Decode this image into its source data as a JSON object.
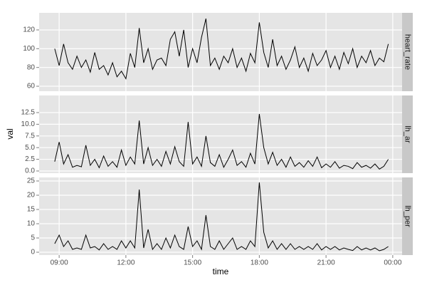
{
  "chart_data": {
    "type": "line",
    "xlabel": "time",
    "ylabel": "val",
    "x": [
      8.8,
      9,
      9.2,
      9.4,
      9.6,
      9.8,
      10,
      10.2,
      10.4,
      10.6,
      10.8,
      11,
      11.2,
      11.4,
      11.6,
      11.8,
      12,
      12.2,
      12.4,
      12.6,
      12.8,
      13,
      13.2,
      13.4,
      13.6,
      13.8,
      14,
      14.2,
      14.4,
      14.6,
      14.8,
      15,
      15.2,
      15.4,
      15.6,
      15.8,
      16,
      16.2,
      16.4,
      16.6,
      16.8,
      17,
      17.2,
      17.4,
      17.6,
      17.8,
      18,
      18.2,
      18.4,
      18.6,
      18.8,
      19,
      19.2,
      19.4,
      19.6,
      19.8,
      20,
      20.2,
      20.4,
      20.6,
      20.8,
      21,
      21.2,
      21.4,
      21.6,
      21.8,
      22,
      22.2,
      22.4,
      22.6,
      22.8,
      23,
      23.2,
      23.4,
      23.6,
      23.8
    ],
    "xlim": [
      8.1,
      24.42
    ],
    "xticks": [
      {
        "value": 9,
        "label": "09:00"
      },
      {
        "value": 12,
        "label": "12:00"
      },
      {
        "value": 15,
        "label": "15:00"
      },
      {
        "value": 18,
        "label": "18:00"
      },
      {
        "value": 21,
        "label": "21:00"
      },
      {
        "value": 24,
        "label": "00:00"
      }
    ],
    "grid": true,
    "series": [
      {
        "name": "heart_rate",
        "color": "#000000",
        "ylim": [
          54.7,
          138.2
        ],
        "yticks": [
          60,
          80,
          100,
          120
        ],
        "values": [
          100,
          82,
          105,
          85,
          78,
          92,
          80,
          88,
          75,
          96,
          78,
          82,
          72,
          85,
          70,
          76,
          68,
          95,
          80,
          122,
          85,
          100,
          78,
          88,
          90,
          82,
          110,
          118,
          92,
          120,
          80,
          100,
          85,
          112,
          132,
          82,
          90,
          78,
          92,
          85,
          100,
          80,
          90,
          76,
          95,
          85,
          128,
          96,
          80,
          110,
          82,
          92,
          78,
          88,
          102,
          80,
          90,
          76,
          95,
          82,
          88,
          98,
          80,
          92,
          78,
          96,
          84,
          100,
          80,
          92,
          85,
          98,
          82,
          90,
          86,
          105
        ]
      },
      {
        "name": "lh_ar",
        "color": "#000000",
        "ylim": [
          -0.46,
          16.16
        ],
        "yticks": [
          {
            "value": 0,
            "label": "0.0"
          },
          2.5,
          {
            "value": 5,
            "label": "5.0"
          },
          7.5,
          {
            "value": 10,
            "label": "10.0"
          },
          12.5
        ],
        "values": [
          2.0,
          6.2,
          1.5,
          3.5,
          0.8,
          1.2,
          0.9,
          5.5,
          1.2,
          2.5,
          0.7,
          3.2,
          1.0,
          2.0,
          0.8,
          4.5,
          1.2,
          3.0,
          1.5,
          10.8,
          1.5,
          5.0,
          1.2,
          2.5,
          1.0,
          4.2,
          1.5,
          5.2,
          2.0,
          1.0,
          10.5,
          1.5,
          3.0,
          1.0,
          7.5,
          1.8,
          1.0,
          3.5,
          0.8,
          2.5,
          4.5,
          1.2,
          2.0,
          0.8,
          3.8,
          1.5,
          12.2,
          5.0,
          1.5,
          4.0,
          1.2,
          2.5,
          0.8,
          3.0,
          1.0,
          1.8,
          0.8,
          2.2,
          1.0,
          3.0,
          0.7,
          1.5,
          0.8,
          2.0,
          0.6,
          1.2,
          1.0,
          0.5,
          1.8,
          0.8,
          1.2,
          0.6,
          1.5,
          0.4,
          1.0,
          2.5
        ]
      },
      {
        "name": "lh_per",
        "color": "#000000",
        "ylim": [
          -1.0,
          26.25
        ],
        "yticks": [
          0,
          5,
          10,
          15,
          20,
          25
        ],
        "values": [
          3,
          6,
          2,
          4,
          1,
          1.5,
          1,
          6,
          1.5,
          2,
          0.8,
          3,
          1,
          2,
          1,
          4,
          1.5,
          4,
          1.5,
          22,
          1.5,
          8,
          1,
          3,
          1,
          5,
          1.5,
          6,
          2,
          1,
          9,
          2,
          4,
          1,
          13,
          2,
          1,
          4,
          1,
          3,
          5,
          1,
          2,
          1,
          4,
          2,
          24.5,
          7,
          1.5,
          4,
          1,
          3,
          1,
          3,
          1,
          2,
          1,
          2,
          1,
          3,
          0.8,
          2,
          1,
          2,
          0.8,
          1.5,
          1,
          0.6,
          2,
          0.8,
          1.5,
          0.8,
          1.5,
          0.5,
          1,
          2
        ]
      }
    ]
  }
}
